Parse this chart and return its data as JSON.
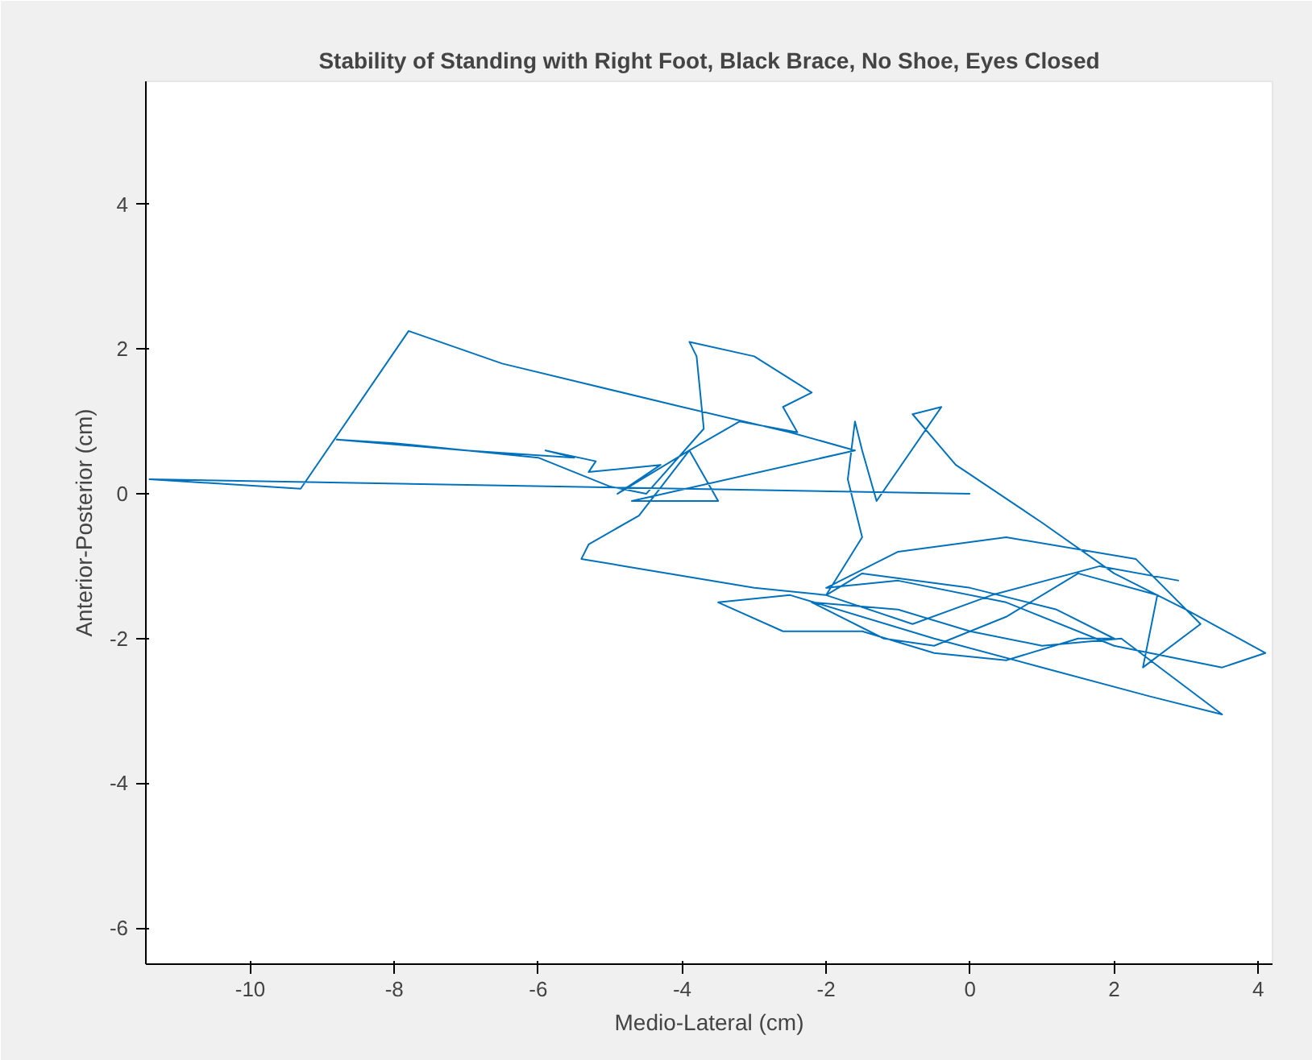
{
  "chart_data": {
    "type": "line",
    "title": "Stability of Standing with Right Foot, Black Brace, No Shoe, Eyes Closed",
    "xlabel": "Medio-Lateral (cm)",
    "ylabel": "Anterior-Posterior (cm)",
    "xlim": [
      -11.45,
      4.2
    ],
    "ylim": [
      -6.5,
      5.7
    ],
    "xticks": [
      -10,
      -8,
      -6,
      -4,
      -2,
      0,
      2,
      4
    ],
    "yticks": [
      -6,
      -4,
      -2,
      0,
      2,
      4
    ],
    "grid": false,
    "series": [
      {
        "color": "#0072bd",
        "x": [
          0.0,
          -11.4,
          -9.3,
          -7.8,
          -6.5,
          -4.0,
          -2.5,
          -1.6,
          -4.7,
          -3.5,
          -3.9,
          -4.9,
          -4.3,
          -5.3,
          -5.2,
          -5.9,
          -5.5,
          -7.0,
          -8.8,
          -8.0,
          -6.0,
          -5.0,
          -4.5,
          -3.7,
          -3.8,
          -3.9,
          -3.0,
          -2.2,
          -2.6,
          -2.4,
          -3.2,
          -3.9,
          -4.6,
          -5.3,
          -5.4,
          -4.8,
          -3.0,
          -2.0,
          -1.5,
          -1.7,
          -1.6,
          -1.5,
          -1.3,
          -0.4,
          -0.8,
          -0.2,
          1.0,
          2.0,
          3.0,
          4.1,
          3.5,
          2.0,
          0.5,
          -1.0,
          -2.0,
          -1.0,
          0.5,
          2.3,
          3.2,
          2.4,
          2.6,
          1.5,
          0.5,
          -0.5,
          -1.2,
          -2.2,
          -1.0,
          0.0,
          1.0,
          2.1,
          3.5,
          2.5,
          1.0,
          -0.5,
          -2.5,
          -3.5,
          -2.6,
          -1.5,
          -0.5,
          0.5,
          1.5,
          2.0,
          1.2,
          0.0,
          -1.5,
          -2.0,
          -0.8,
          0.3,
          1.8,
          2.9
        ],
        "values": [
          0.0,
          0.2,
          0.07,
          2.25,
          1.8,
          1.2,
          0.85,
          0.6,
          -0.1,
          -0.1,
          0.6,
          0.0,
          0.4,
          0.3,
          0.45,
          0.6,
          0.5,
          0.6,
          0.75,
          0.7,
          0.5,
          0.1,
          0.0,
          0.9,
          1.9,
          2.1,
          1.9,
          1.4,
          1.2,
          0.85,
          1.0,
          0.6,
          -0.3,
          -0.7,
          -0.9,
          -1.0,
          -1.3,
          -1.4,
          -0.6,
          0.2,
          1.0,
          0.6,
          -0.1,
          1.2,
          1.1,
          0.4,
          -0.4,
          -1.1,
          -1.6,
          -2.2,
          -2.4,
          -2.1,
          -1.5,
          -1.2,
          -1.3,
          -0.8,
          -0.6,
          -0.9,
          -1.8,
          -2.4,
          -1.4,
          -1.1,
          -1.7,
          -2.1,
          -2.0,
          -1.5,
          -1.6,
          -1.9,
          -2.1,
          -2.0,
          -3.05,
          -2.8,
          -2.4,
          -2.0,
          -1.4,
          -1.5,
          -1.9,
          -1.9,
          -2.2,
          -2.3,
          -2.0,
          -2.0,
          -1.6,
          -1.3,
          -1.1,
          -1.4,
          -1.8,
          -1.4,
          -1.0,
          -1.2
        ]
      }
    ]
  }
}
